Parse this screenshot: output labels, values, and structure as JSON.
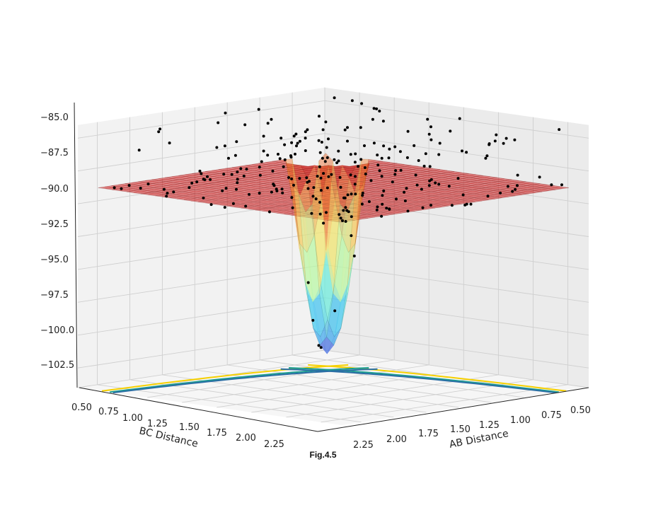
{
  "caption": "Fig.4.5",
  "chart_data": {
    "type": "surface3d",
    "description_free": true,
    "z_ticks": [
      "−85.0",
      "−87.5",
      "−90.0",
      "−92.5",
      "−95.0",
      "−97.5",
      "−100.0",
      "−102.5"
    ],
    "z_values": [
      -85.0,
      -87.5,
      -90.0,
      -92.5,
      -95.0,
      -97.5,
      -100.0,
      -102.5
    ],
    "bc_ticks": [
      "0.50",
      "0.75",
      "1.00",
      "1.25",
      "1.50",
      "1.75",
      "2.00",
      "2.25"
    ],
    "ab_ticks": [
      "0.50",
      "0.75",
      "1.00",
      "1.25",
      "1.50",
      "1.75",
      "2.00",
      "2.25"
    ],
    "xlabel": "BC Distance",
    "ylabel": "AB Distance",
    "zlim": [
      -104,
      -84
    ],
    "grid": true,
    "surface_colormap": [
      "#4b3bd6",
      "#35c4f4",
      "#7fffd0",
      "#f0f070",
      "#ff9a3c",
      "#c00000"
    ],
    "scatter_color": "#000000",
    "contour_colors": [
      "#f5d000",
      "#1a9e8f",
      "#2b6fa5"
    ]
  }
}
